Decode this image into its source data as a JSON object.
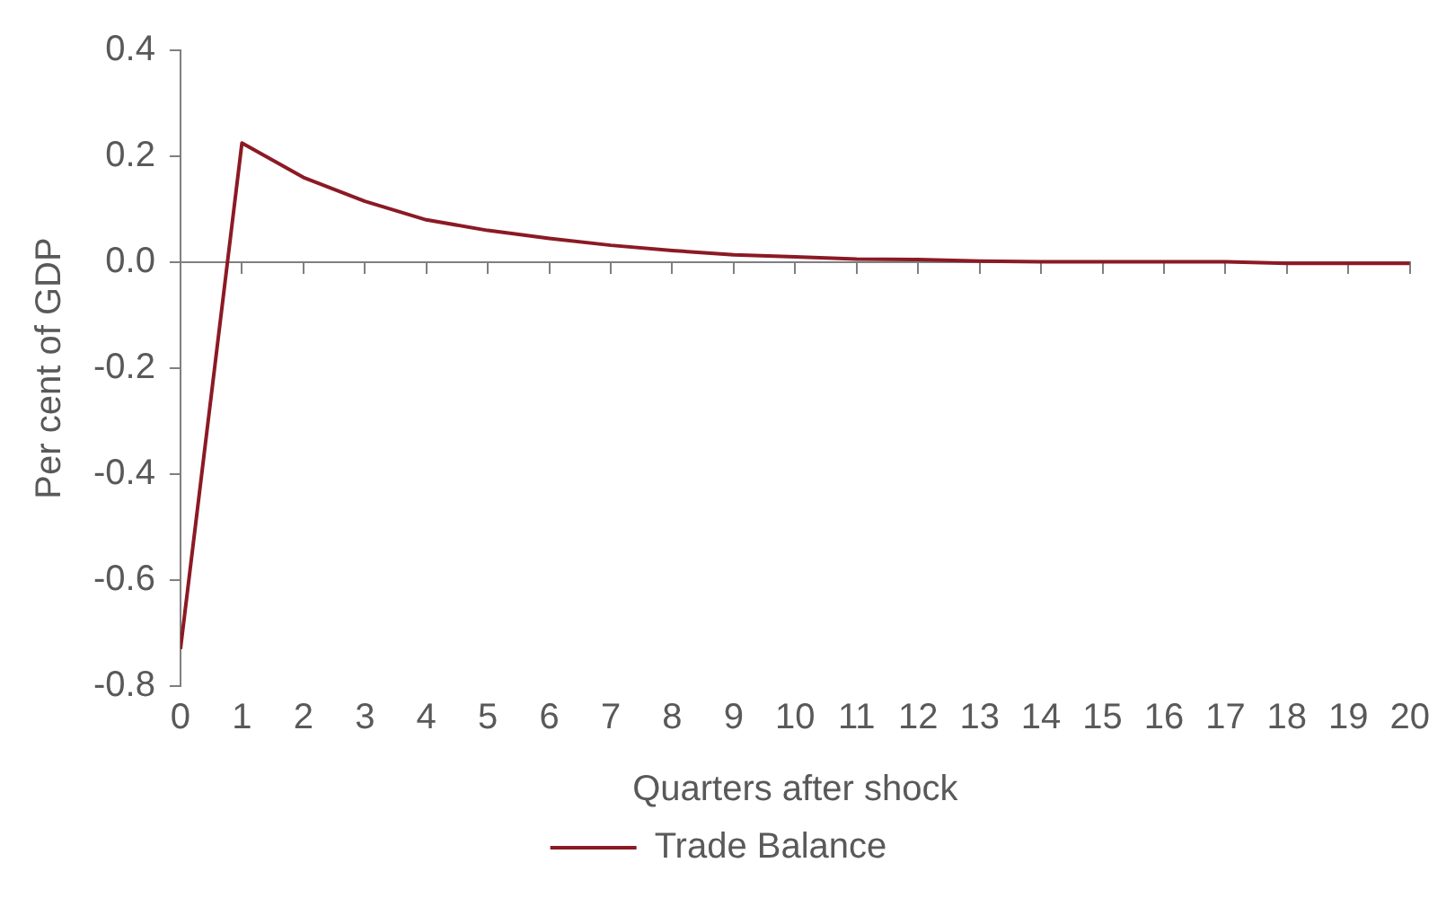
{
  "chart_data": {
    "type": "line",
    "xlabel": "Quarters after shock",
    "ylabel": "Per cent of GDP",
    "x": [
      0,
      1,
      2,
      3,
      4,
      5,
      6,
      7,
      8,
      9,
      10,
      11,
      12,
      13,
      14,
      15,
      16,
      17,
      18,
      19,
      20
    ],
    "series": [
      {
        "name": "Trade Balance",
        "color": "#8b1a24",
        "values": [
          -0.73,
          0.225,
          0.16,
          0.115,
          0.08,
          0.06,
          0.045,
          0.032,
          0.022,
          0.014,
          0.01,
          0.006,
          0.005,
          0.002,
          0.001,
          0.001,
          0.001,
          0.001,
          -0.002,
          -0.002,
          -0.002
        ]
      }
    ],
    "xlim": [
      0,
      20
    ],
    "xticks": [
      0,
      1,
      2,
      3,
      4,
      5,
      6,
      7,
      8,
      9,
      10,
      11,
      12,
      13,
      14,
      15,
      16,
      17,
      18,
      19,
      20
    ],
    "ylim": [
      -0.8,
      0.4
    ],
    "yticks": [
      {
        "value": -0.8,
        "label": "-0.8"
      },
      {
        "value": -0.6,
        "label": "-0.6"
      },
      {
        "value": -0.4,
        "label": "-0.4"
      },
      {
        "value": -0.2,
        "label": "-0.2"
      },
      {
        "value": 0,
        "label": "0.0"
      },
      {
        "value": 0.2,
        "label": "0.2"
      },
      {
        "value": 0.4,
        "label": "0.4"
      }
    ],
    "legend": "bottom",
    "marker": "none",
    "line_style": "solid"
  }
}
